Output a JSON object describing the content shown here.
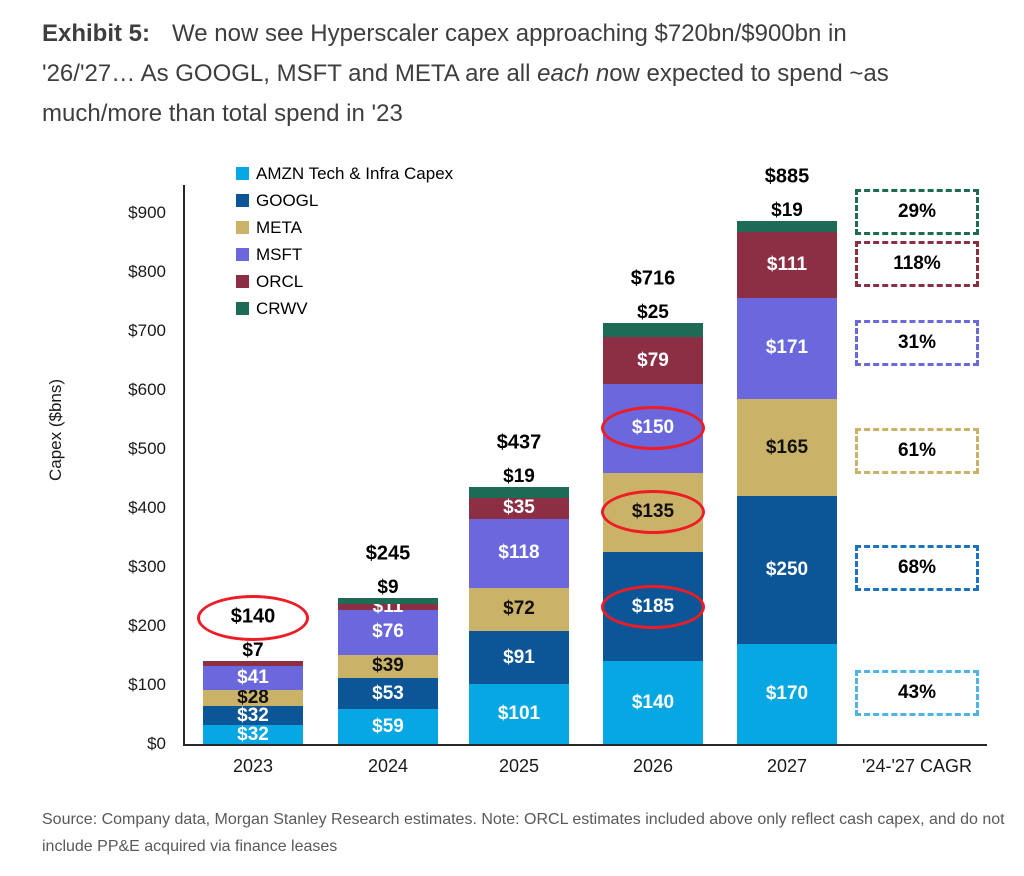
{
  "title": {
    "exhibit_label": "Exhibit 5:",
    "line1": "We now see Hyperscaler capex approaching $720bn/$900bn in",
    "line2_pre": "'26/'27… As GOOGL, MSFT and META are all ",
    "line2_italic": "each n",
    "line2_post": "ow expected to spend ~as",
    "line3": "much/more than total spend in '23"
  },
  "source_note": {
    "line1": "Source: Company data, Morgan Stanley Research estimates. Note: ORCL estimates included above only reflect cash capex, and do not",
    "line2": "include PP&E acquired via finance leases"
  },
  "chart_data": {
    "type": "bar",
    "stacked": true,
    "ylabel": "Capex ($bns)",
    "ylim": [
      0,
      900
    ],
    "ytick_step": 100,
    "ytick_prefix": "$",
    "grid": false,
    "legend_position": "top-left-inside",
    "categories": [
      "2023",
      "2024",
      "2025",
      "2026",
      "2027"
    ],
    "cagr_header": "'24-'27 CAGR",
    "annotation_color": "#EE1C25",
    "series": [
      {
        "name": "AMZN Tech & Infra Capex",
        "short": "amzn",
        "color": "#06A7E2",
        "label_color": "#FFFFFF",
        "cagr": "43%",
        "cagr_box_color": "#4FB3E8"
      },
      {
        "name": "GOOGL",
        "short": "googl",
        "color": "#0C5697",
        "label_color": "#FFFFFF",
        "cagr": "68%",
        "cagr_box_color": "#1E73BE"
      },
      {
        "name": "META",
        "short": "meta",
        "color": "#CBB269",
        "label_color": "#111111",
        "cagr": "61%",
        "cagr_box_color": "#CBB269"
      },
      {
        "name": "MSFT",
        "short": "msft",
        "color": "#6A68DC",
        "label_color": "#FFFFFF",
        "cagr": "31%",
        "cagr_box_color": "#6A68DC"
      },
      {
        "name": "ORCL",
        "short": "orcl",
        "color": "#8C2F45",
        "label_color": "#FFFFFF",
        "cagr": "118%",
        "cagr_box_color": "#8C2F45"
      },
      {
        "name": "CRWV",
        "short": "crwv",
        "color": "#1D6B55",
        "label_color": "#FFFFFF",
        "cagr": "29%",
        "cagr_box_color": "#1D6B55"
      }
    ],
    "bars": [
      {
        "category": "2023",
        "total": {
          "label": "$140",
          "circled": true
        },
        "segments": [
          {
            "series": "AMZN Tech & Infra Capex",
            "value": 32,
            "placement": "inside"
          },
          {
            "series": "GOOGL",
            "value": 32,
            "placement": "inside"
          },
          {
            "series": "META",
            "value": 28,
            "placement": "inside"
          },
          {
            "series": "MSFT",
            "value": 41,
            "placement": "inside"
          },
          {
            "series": "ORCL",
            "value": 7,
            "placement": "above"
          }
        ]
      },
      {
        "category": "2024",
        "total": {
          "label": "$245",
          "circled": false
        },
        "segments": [
          {
            "series": "AMZN Tech & Infra Capex",
            "value": 59,
            "placement": "inside"
          },
          {
            "series": "GOOGL",
            "value": 53,
            "placement": "inside"
          },
          {
            "series": "META",
            "value": 39,
            "placement": "inside"
          },
          {
            "series": "MSFT",
            "value": 76,
            "placement": "inside"
          },
          {
            "series": "ORCL",
            "value": 11,
            "placement": "inside"
          },
          {
            "series": "CRWV",
            "value": 9,
            "placement": "above"
          }
        ]
      },
      {
        "category": "2025",
        "total": {
          "label": "$437",
          "circled": false
        },
        "segments": [
          {
            "series": "AMZN Tech & Infra Capex",
            "value": 101,
            "placement": "inside"
          },
          {
            "series": "GOOGL",
            "value": 91,
            "placement": "inside"
          },
          {
            "series": "META",
            "value": 72,
            "placement": "inside"
          },
          {
            "series": "MSFT",
            "value": 118,
            "placement": "inside"
          },
          {
            "series": "ORCL",
            "value": 35,
            "placement": "inside"
          },
          {
            "series": "CRWV",
            "value": 19,
            "placement": "above"
          }
        ]
      },
      {
        "category": "2026",
        "total": {
          "label": "$716",
          "circled": false
        },
        "segments": [
          {
            "series": "AMZN Tech & Infra Capex",
            "value": 140,
            "placement": "inside"
          },
          {
            "series": "GOOGL",
            "value": 185,
            "placement": "inside",
            "circled": true
          },
          {
            "series": "META",
            "value": 135,
            "placement": "inside",
            "circled": true
          },
          {
            "series": "MSFT",
            "value": 150,
            "placement": "inside",
            "circled": true
          },
          {
            "series": "ORCL",
            "value": 79,
            "placement": "inside"
          },
          {
            "series": "CRWV",
            "value": 25,
            "placement": "above"
          }
        ]
      },
      {
        "category": "2027",
        "total": {
          "label": "$885",
          "circled": false
        },
        "segments": [
          {
            "series": "AMZN Tech & Infra Capex",
            "value": 170,
            "placement": "inside"
          },
          {
            "series": "GOOGL",
            "value": 250,
            "placement": "inside"
          },
          {
            "series": "META",
            "value": 165,
            "placement": "inside"
          },
          {
            "series": "MSFT",
            "value": 171,
            "placement": "inside"
          },
          {
            "series": "ORCL",
            "value": 111,
            "placement": "inside"
          },
          {
            "series": "CRWV",
            "value": 19,
            "placement": "above"
          }
        ]
      }
    ]
  }
}
